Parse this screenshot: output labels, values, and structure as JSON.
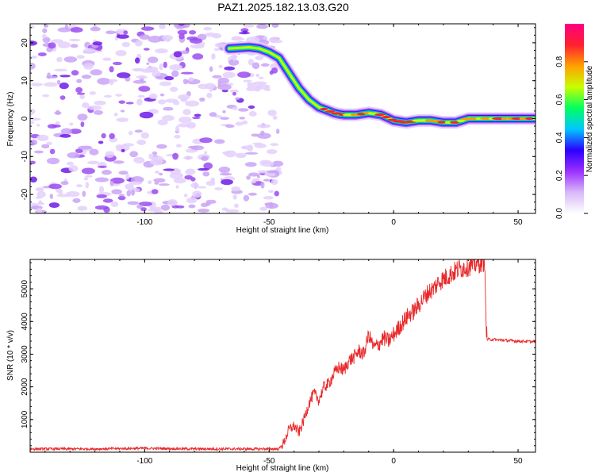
{
  "title": "PAZ1.2025.182.13.03.G20",
  "colors": {
    "snr_line": "#e8282a",
    "ridge": "#7a00e6",
    "axis": "#000000"
  },
  "chart_data": [
    {
      "type": "heatmap",
      "xlabel": "Height of straight line (km)",
      "ylabel": "Frequency (Hz)",
      "xlim": [
        -146,
        57
      ],
      "ylim": [
        -25,
        25
      ],
      "xticks": [
        -100,
        -50,
        0,
        50
      ],
      "yticks": [
        -20,
        -10,
        0,
        10,
        20
      ],
      "noise_region_x": [
        -146,
        -46
      ],
      "ridge": {
        "x": [
          -66,
          -58,
          -54,
          -50,
          -46,
          -44,
          -42,
          -40,
          -38,
          -36,
          -34,
          -32,
          -30,
          -28,
          -26,
          -24,
          -22,
          -20,
          -15,
          -10,
          -5,
          0,
          5,
          10,
          15,
          20,
          25,
          30,
          40,
          50,
          57
        ],
        "y": [
          18.5,
          18.8,
          18.5,
          17.5,
          16,
          14,
          12,
          10,
          8,
          6.5,
          5,
          4,
          3,
          2.5,
          2,
          1.5,
          1.2,
          1,
          1,
          1.5,
          1,
          -0.5,
          -1,
          -0.5,
          -0.5,
          -1,
          -1,
          0,
          0,
          0,
          0
        ]
      },
      "colorbar": {
        "label": "Normalized spectral amplitude",
        "range": [
          0,
          1
        ],
        "ticks": [
          "0.0",
          "0.2",
          "0.4",
          "0.6",
          "0.8"
        ],
        "colors": [
          "#ffffff",
          "#d8b8f8",
          "#9b30ff",
          "#2c00ff",
          "#00c8ff",
          "#00ff60",
          "#c8ff00",
          "#ffa000",
          "#ff2030",
          "#ff0080"
        ]
      }
    },
    {
      "type": "line",
      "xlabel": "Height of straight line (km)",
      "ylabel": "SNR (10 * v/v)",
      "xlim": [
        -146,
        57
      ],
      "ylim": [
        0,
        5900
      ],
      "xticks": [
        -100,
        -50,
        0,
        50
      ],
      "yticks": [
        1000,
        2000,
        3000,
        4000,
        5000
      ],
      "series": [
        {
          "x": [
            -146,
            -120,
            -100,
            -80,
            -60,
            -46,
            -44,
            -42,
            -40,
            -38,
            -36,
            -34,
            -32,
            -30,
            -28,
            -26,
            -24,
            -22,
            -20,
            -18,
            -16,
            -14,
            -12,
            -10,
            -8,
            -6,
            -4,
            -2,
            0,
            2,
            4,
            6,
            8,
            10,
            12,
            14,
            16,
            18,
            20,
            22,
            24,
            26,
            28,
            30,
            32,
            34,
            36,
            37,
            37.5,
            40,
            45,
            50,
            57
          ],
          "y": [
            100,
            100,
            120,
            100,
            100,
            100,
            300,
            700,
            800,
            600,
            1000,
            1500,
            1800,
            1600,
            2000,
            2100,
            2400,
            2600,
            2500,
            2800,
            2900,
            3100,
            3000,
            3600,
            3200,
            3300,
            3500,
            3400,
            3600,
            3800,
            4000,
            4200,
            4300,
            4500,
            4700,
            4900,
            5000,
            5200,
            5300,
            5400,
            5500,
            5600,
            5650,
            5700,
            5750,
            5800,
            5850,
            5900,
            3450,
            3450,
            3420,
            3400,
            3380
          ]
        }
      ]
    }
  ]
}
